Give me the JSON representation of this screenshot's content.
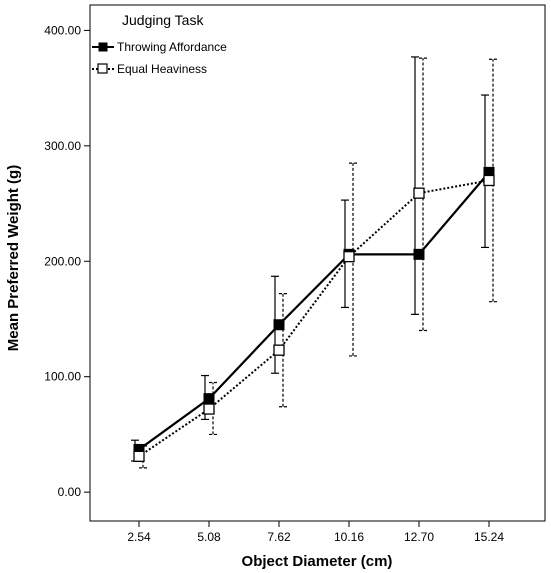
{
  "chart_data": {
    "type": "line",
    "xlabel": "Object Diameter (cm)",
    "ylabel": "Mean Preferred Weight (g)",
    "categories": [
      "2.54",
      "5.08",
      "7.62",
      "10.16",
      "12.70",
      "15.24"
    ],
    "yticks": [
      "0.00",
      "100.00",
      "200.00",
      "300.00",
      "400.00"
    ],
    "ylim": [
      -25,
      422
    ],
    "grid": false,
    "legend": {
      "title": "Judging Task",
      "placement": "top-left"
    },
    "series": [
      {
        "name": "Throwing Affordance",
        "line_style": "solid",
        "marker": "filled-square",
        "values": [
          37,
          81,
          145,
          206,
          206,
          277
        ],
        "error_low": [
          27,
          63,
          103,
          160,
          154,
          212
        ],
        "error_high": [
          45,
          101,
          187,
          253,
          377,
          344
        ]
      },
      {
        "name": "Equal Heaviness",
        "line_style": "dotted",
        "marker": "open-square",
        "values": [
          31,
          72,
          123,
          204,
          259,
          270
        ],
        "error_low": [
          21,
          50,
          74,
          118,
          140,
          165
        ],
        "error_high": [
          40,
          95,
          172,
          285,
          376,
          375
        ]
      }
    ],
    "colors": {
      "line": "#000000",
      "background": "#ffffff"
    }
  }
}
